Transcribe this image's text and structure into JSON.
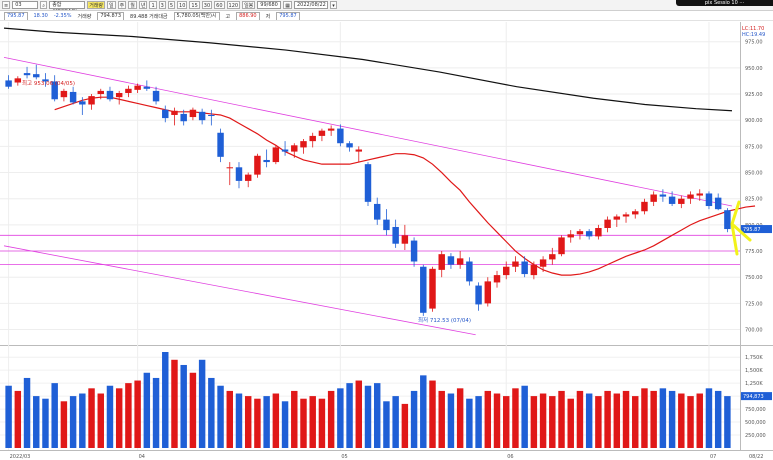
{
  "toolbar": {
    "code_value": "03",
    "market_label": "종합(KOSDAQ)",
    "chart_type": "거래량",
    "price": "794.873",
    "change_text": "89.488 거래대금",
    "period_text": "5,780.05(백만)시",
    "high_label": "고",
    "high_value": "886.90",
    "low_label": "저",
    "low_value": "795.87",
    "count_value": "99/680",
    "date_value": "2022/08/22",
    "sub_price": "795.87",
    "sub_change": "18.30",
    "sub_rate": "-2.35%",
    "sub_volume_label": "거래량",
    "period_buttons": [
      "일",
      "주",
      "월",
      "년",
      "1",
      "3",
      "5",
      "10",
      "15",
      "30",
      "60",
      "120"
    ],
    "star_label": "일봉"
  },
  "logo_text": "pix Sessio 10 ···",
  "chart_data": {
    "type": "candlestick",
    "y_ticks": [
      "975.00",
      "950.00",
      "925.00",
      "900.00",
      "875.00",
      "850.00",
      "825.00",
      "800.00",
      "775.00",
      "750.00",
      "725.00",
      "700.00"
    ],
    "ylim": [
      690,
      990
    ],
    "volume_ticks": [
      "1,750K",
      "1,500K",
      "1,250K",
      "1,000K",
      "750,000",
      "500,000",
      "250,000"
    ],
    "volume_max": 1850000,
    "x_ticks": [
      "2022/03",
      "04",
      "05",
      "06",
      "07",
      "08",
      "08/22"
    ],
    "right_labels": {
      "lc": "LC:11.70",
      "hc": "HC:19.49",
      "price_tag": "795.87",
      "vol_tag": "794,873"
    },
    "annotations": {
      "high": "최고 953.06 (04/05)",
      "low": "최저 712.53 (07/04)"
    },
    "candles": [
      {
        "o": 938,
        "h": 943,
        "l": 930,
        "c": 932,
        "v": 1200000
      },
      {
        "o": 936,
        "h": 942,
        "l": 933,
        "c": 940,
        "v": 1100000
      },
      {
        "o": 945,
        "h": 951,
        "l": 940,
        "c": 943,
        "v": 1350000
      },
      {
        "o": 944,
        "h": 953,
        "l": 939,
        "c": 941,
        "v": 1000000
      },
      {
        "o": 939,
        "h": 945,
        "l": 932,
        "c": 937,
        "v": 950000
      },
      {
        "o": 937,
        "h": 943,
        "l": 918,
        "c": 920,
        "v": 1250000
      },
      {
        "o": 922,
        "h": 930,
        "l": 918,
        "c": 928,
        "v": 900000
      },
      {
        "o": 927,
        "h": 932,
        "l": 915,
        "c": 917,
        "v": 1000000
      },
      {
        "o": 918,
        "h": 922,
        "l": 905,
        "c": 915,
        "v": 1050000
      },
      {
        "o": 915,
        "h": 925,
        "l": 910,
        "c": 923,
        "v": 1150000
      },
      {
        "o": 925,
        "h": 930,
        "l": 920,
        "c": 928,
        "v": 1050000
      },
      {
        "o": 928,
        "h": 932,
        "l": 918,
        "c": 920,
        "v": 1200000
      },
      {
        "o": 922,
        "h": 928,
        "l": 915,
        "c": 926,
        "v": 1150000
      },
      {
        "o": 926,
        "h": 933,
        "l": 922,
        "c": 930,
        "v": 1250000
      },
      {
        "o": 929,
        "h": 935,
        "l": 926,
        "c": 933,
        "v": 1300000
      },
      {
        "o": 932,
        "h": 938,
        "l": 928,
        "c": 930,
        "v": 1450000
      },
      {
        "o": 928,
        "h": 932,
        "l": 915,
        "c": 918,
        "v": 1350000
      },
      {
        "o": 910,
        "h": 914,
        "l": 898,
        "c": 902,
        "v": 1850000
      },
      {
        "o": 905,
        "h": 912,
        "l": 895,
        "c": 909,
        "v": 1700000
      },
      {
        "o": 906,
        "h": 910,
        "l": 895,
        "c": 899,
        "v": 1600000
      },
      {
        "o": 903,
        "h": 912,
        "l": 900,
        "c": 910,
        "v": 1450000
      },
      {
        "o": 908,
        "h": 911,
        "l": 896,
        "c": 900,
        "v": 1700000
      },
      {
        "o": 905,
        "h": 910,
        "l": 895,
        "c": 904,
        "v": 1350000
      },
      {
        "o": 888,
        "h": 892,
        "l": 860,
        "c": 865,
        "v": 1200000
      },
      {
        "o": 855,
        "h": 860,
        "l": 838,
        "c": 855,
        "v": 1100000
      },
      {
        "o": 855,
        "h": 860,
        "l": 835,
        "c": 842,
        "v": 1050000
      },
      {
        "o": 842,
        "h": 850,
        "l": 836,
        "c": 848,
        "v": 1000000
      },
      {
        "o": 848,
        "h": 868,
        "l": 845,
        "c": 866,
        "v": 950000
      },
      {
        "o": 862,
        "h": 872,
        "l": 855,
        "c": 860,
        "v": 1000000
      },
      {
        "o": 860,
        "h": 876,
        "l": 858,
        "c": 874,
        "v": 1050000
      },
      {
        "o": 872,
        "h": 880,
        "l": 866,
        "c": 870,
        "v": 900000
      },
      {
        "o": 870,
        "h": 878,
        "l": 864,
        "c": 876,
        "v": 1100000
      },
      {
        "o": 874,
        "h": 882,
        "l": 868,
        "c": 880,
        "v": 950000
      },
      {
        "o": 880,
        "h": 888,
        "l": 874,
        "c": 885,
        "v": 1000000
      },
      {
        "o": 885,
        "h": 892,
        "l": 880,
        "c": 890,
        "v": 950000
      },
      {
        "o": 890,
        "h": 895,
        "l": 885,
        "c": 892,
        "v": 1100000
      },
      {
        "o": 892,
        "h": 896,
        "l": 875,
        "c": 878,
        "v": 1150000
      },
      {
        "o": 878,
        "h": 880,
        "l": 870,
        "c": 874,
        "v": 1250000
      },
      {
        "o": 870,
        "h": 875,
        "l": 860,
        "c": 872,
        "v": 1300000
      },
      {
        "o": 858,
        "h": 860,
        "l": 818,
        "c": 822,
        "v": 1200000
      },
      {
        "o": 820,
        "h": 826,
        "l": 800,
        "c": 805,
        "v": 1250000
      },
      {
        "o": 805,
        "h": 815,
        "l": 790,
        "c": 795,
        "v": 900000
      },
      {
        "o": 798,
        "h": 805,
        "l": 778,
        "c": 782,
        "v": 1000000
      },
      {
        "o": 782,
        "h": 800,
        "l": 776,
        "c": 790,
        "v": 850000
      },
      {
        "o": 785,
        "h": 788,
        "l": 760,
        "c": 765,
        "v": 1100000
      },
      {
        "o": 760,
        "h": 762,
        "l": 713,
        "c": 716,
        "v": 1400000
      },
      {
        "o": 720,
        "h": 760,
        "l": 717,
        "c": 758,
        "v": 1300000
      },
      {
        "o": 757,
        "h": 775,
        "l": 750,
        "c": 772,
        "v": 1100000
      },
      {
        "o": 770,
        "h": 773,
        "l": 758,
        "c": 762,
        "v": 1050000
      },
      {
        "o": 762,
        "h": 775,
        "l": 758,
        "c": 768,
        "v": 1150000
      },
      {
        "o": 765,
        "h": 769,
        "l": 742,
        "c": 746,
        "v": 950000
      },
      {
        "o": 742,
        "h": 745,
        "l": 718,
        "c": 724,
        "v": 1000000
      },
      {
        "o": 725,
        "h": 750,
        "l": 722,
        "c": 746,
        "v": 1100000
      },
      {
        "o": 745,
        "h": 756,
        "l": 740,
        "c": 752,
        "v": 1050000
      },
      {
        "o": 752,
        "h": 765,
        "l": 748,
        "c": 760,
        "v": 1000000
      },
      {
        "o": 760,
        "h": 770,
        "l": 755,
        "c": 765,
        "v": 1150000
      },
      {
        "o": 765,
        "h": 770,
        "l": 750,
        "c": 753,
        "v": 1200000
      },
      {
        "o": 752,
        "h": 765,
        "l": 748,
        "c": 762,
        "v": 1000000
      },
      {
        "o": 760,
        "h": 770,
        "l": 755,
        "c": 767,
        "v": 1050000
      },
      {
        "o": 767,
        "h": 778,
        "l": 762,
        "c": 772,
        "v": 1000000
      },
      {
        "o": 772,
        "h": 790,
        "l": 770,
        "c": 788,
        "v": 1100000
      },
      {
        "o": 788,
        "h": 795,
        "l": 783,
        "c": 791,
        "v": 950000
      },
      {
        "o": 791,
        "h": 796,
        "l": 786,
        "c": 794,
        "v": 1100000
      },
      {
        "o": 794,
        "h": 796,
        "l": 786,
        "c": 789,
        "v": 1050000
      },
      {
        "o": 789,
        "h": 800,
        "l": 786,
        "c": 797,
        "v": 1000000
      },
      {
        "o": 797,
        "h": 808,
        "l": 793,
        "c": 805,
        "v": 1100000
      },
      {
        "o": 805,
        "h": 810,
        "l": 798,
        "c": 808,
        "v": 1050000
      },
      {
        "o": 808,
        "h": 812,
        "l": 802,
        "c": 810,
        "v": 1100000
      },
      {
        "o": 810,
        "h": 815,
        "l": 806,
        "c": 813,
        "v": 1000000
      },
      {
        "o": 813,
        "h": 825,
        "l": 810,
        "c": 822,
        "v": 1150000
      },
      {
        "o": 822,
        "h": 832,
        "l": 818,
        "c": 829,
        "v": 1100000
      },
      {
        "o": 829,
        "h": 834,
        "l": 822,
        "c": 827,
        "v": 1150000
      },
      {
        "o": 827,
        "h": 832,
        "l": 818,
        "c": 820,
        "v": 1100000
      },
      {
        "o": 820,
        "h": 828,
        "l": 816,
        "c": 825,
        "v": 1050000
      },
      {
        "o": 825,
        "h": 832,
        "l": 820,
        "c": 829,
        "v": 1000000
      },
      {
        "o": 828,
        "h": 834,
        "l": 823,
        "c": 830,
        "v": 1050000
      },
      {
        "o": 830,
        "h": 832,
        "l": 815,
        "c": 818,
        "v": 1150000
      },
      {
        "o": 826,
        "h": 830,
        "l": 814,
        "c": 815,
        "v": 1100000
      },
      {
        "o": 814,
        "h": 816,
        "l": 793,
        "c": 796,
        "v": 1000000
      }
    ],
    "ma_long": [
      [
        0,
        988
      ],
      [
        10,
        984
      ],
      [
        25,
        980
      ],
      [
        40,
        974
      ],
      [
        55,
        967
      ],
      [
        70,
        958
      ],
      [
        85,
        946
      ],
      [
        100,
        932
      ],
      [
        115,
        921
      ],
      [
        125,
        915
      ],
      [
        135,
        911
      ],
      [
        142,
        909
      ]
    ],
    "ma20_start": 5,
    "ma20": [
      910,
      913,
      916,
      919,
      921,
      922,
      922,
      920,
      918,
      916,
      914,
      912,
      910,
      908,
      908,
      908,
      907,
      906,
      905,
      902,
      897,
      892,
      887,
      881,
      876,
      870,
      866,
      862,
      860,
      858,
      858,
      858,
      858,
      860,
      862,
      864,
      866,
      868,
      868,
      867,
      864,
      858,
      850,
      841,
      833,
      822,
      812,
      802,
      793,
      784,
      775,
      768,
      762,
      757,
      754,
      752,
      752,
      753,
      755,
      758,
      762,
      766,
      770,
      773,
      776,
      780,
      785,
      790,
      795,
      800,
      804,
      807,
      810,
      813,
      815,
      817,
      818
    ],
    "trendlines": [
      {
        "x1": 0,
        "y1": 960,
        "x2": 142,
        "y2": 818,
        "color": "#e040e0"
      },
      {
        "x1": 0,
        "y1": 780,
        "x2": 92,
        "y2": 695,
        "color": "#e040e0"
      }
    ],
    "hlines": [
      {
        "y": 790,
        "color": "#e040e0"
      },
      {
        "y": 775,
        "color": "#e040e0"
      },
      {
        "y": 762,
        "color": "#e040e0"
      }
    ]
  }
}
